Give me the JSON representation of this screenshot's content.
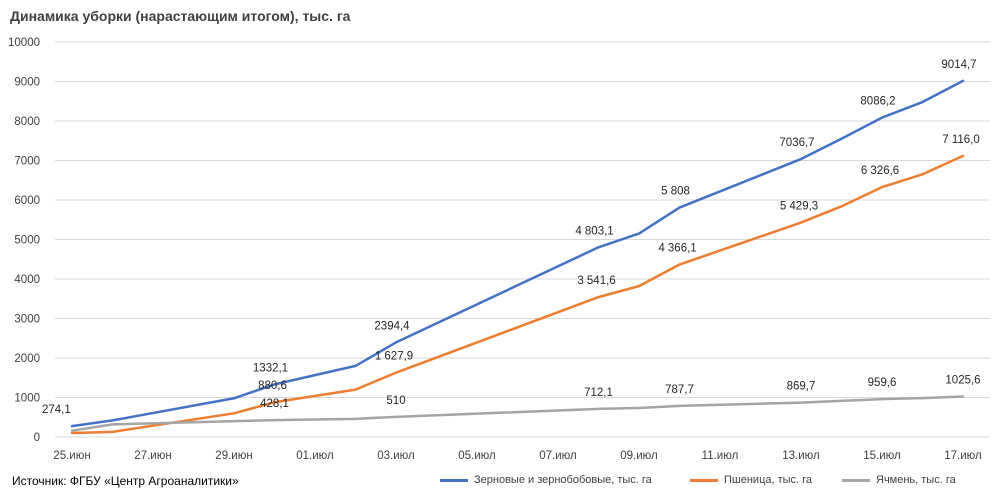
{
  "chart_data": {
    "type": "line",
    "title": "Динамика уборки (нарастающим итогом), тыс. га",
    "source": "Источник: ФГБУ «Центр Агроаналитики»",
    "ylim": [
      0,
      10000
    ],
    "yticks": [
      "0",
      "1000",
      "2000",
      "3000",
      "4000",
      "5000",
      "6000",
      "7000",
      "8000",
      "9000",
      "10000"
    ],
    "xticks": [
      "25.июн",
      "27.июн",
      "29.июн",
      "01.июл",
      "03.июл",
      "05.июл",
      "07.июл",
      "09.июл",
      "11.июл",
      "13.июл",
      "15.июл",
      "17.июл"
    ],
    "grid": true,
    "legend_position": "bottom",
    "series": [
      {
        "name": "Зерновые и зернобобовые, тыс. га",
        "color": "#4472C4",
        "points": [
          {
            "x": "25.июн",
            "y": 274.1,
            "label": "274,1"
          },
          {
            "x": "26.июн",
            "y": 420
          },
          {
            "x": "29.июн",
            "y": 980
          },
          {
            "x": "30.июн",
            "y": 1332.1,
            "label": "1332,1"
          },
          {
            "x": "02.июл",
            "y": 1800
          },
          {
            "x": "03.июл",
            "y": 2394.4,
            "label": "2394,4"
          },
          {
            "x": "08.июл",
            "y": 4803.1,
            "label": "4 803,1"
          },
          {
            "x": "09.июл",
            "y": 5150
          },
          {
            "x": "10.июл",
            "y": 5808,
            "label": "5 808"
          },
          {
            "x": "13.июл",
            "y": 7036.7,
            "label": "7036,7"
          },
          {
            "x": "14.июл",
            "y": 7550
          },
          {
            "x": "15.июл",
            "y": 8086.2,
            "label": "8086,2"
          },
          {
            "x": "16.июл",
            "y": 8480
          },
          {
            "x": "17.июл",
            "y": 9014.7,
            "label": "9014,7"
          }
        ]
      },
      {
        "name": "Пшеница, тыс. га",
        "color": "#ED7D31",
        "points": [
          {
            "x": "25.июн",
            "y": 100
          },
          {
            "x": "26.июн",
            "y": 130
          },
          {
            "x": "29.июн",
            "y": 600
          },
          {
            "x": "30.июн",
            "y": 880.6,
            "label": "880,6"
          },
          {
            "x": "02.июл",
            "y": 1200
          },
          {
            "x": "03.июл",
            "y": 1627.9,
            "label": "1 627,9"
          },
          {
            "x": "08.июл",
            "y": 3541.6,
            "label": "3 541,6"
          },
          {
            "x": "09.июл",
            "y": 3820
          },
          {
            "x": "10.июл",
            "y": 4366.1,
            "label": "4 366,1"
          },
          {
            "x": "13.июл",
            "y": 5429.3,
            "label": "5 429,3"
          },
          {
            "x": "14.июл",
            "y": 5840
          },
          {
            "x": "15.июл",
            "y": 6326.6,
            "label": "6 326,6"
          },
          {
            "x": "16.июл",
            "y": 6650
          },
          {
            "x": "17.июл",
            "y": 7116.0,
            "label": "7 116,0"
          }
        ]
      },
      {
        "name": "Ячмень, тыс. га",
        "color": "#A5A5A5",
        "points": [
          {
            "x": "25.июн",
            "y": 160
          },
          {
            "x": "26.июн",
            "y": 320
          },
          {
            "x": "30.июн",
            "y": 428.1,
            "label": "428,1"
          },
          {
            "x": "02.июл",
            "y": 460
          },
          {
            "x": "03.июл",
            "y": 510,
            "label": "510"
          },
          {
            "x": "08.июл",
            "y": 712.1,
            "label": "712,1"
          },
          {
            "x": "09.июл",
            "y": 735
          },
          {
            "x": "10.июл",
            "y": 787.7,
            "label": "787,7"
          },
          {
            "x": "13.июл",
            "y": 869.7,
            "label": "869,7"
          },
          {
            "x": "15.июл",
            "y": 959.6,
            "label": "959,6"
          },
          {
            "x": "16.июл",
            "y": 985
          },
          {
            "x": "17.июл",
            "y": 1025.6,
            "label": "1025,6"
          }
        ]
      }
    ]
  }
}
